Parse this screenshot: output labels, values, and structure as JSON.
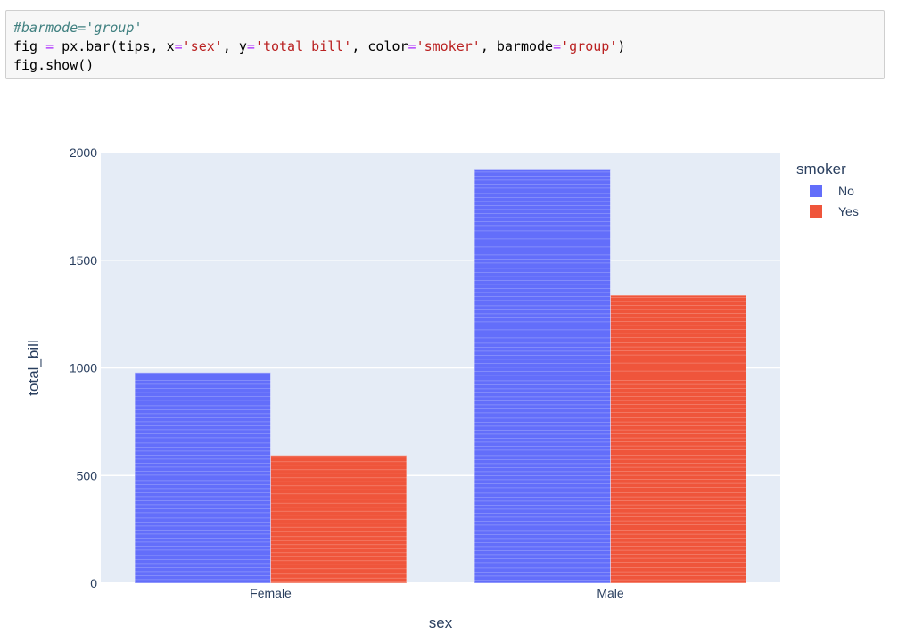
{
  "code_cell": {
    "lines": [
      [
        {
          "t": "#barmode='group'",
          "c": "comment"
        }
      ],
      [
        {
          "t": "fig ",
          "c": ""
        },
        {
          "t": "=",
          "c": "op"
        },
        {
          "t": " px.bar(tips, x",
          "c": ""
        },
        {
          "t": "=",
          "c": "op"
        },
        {
          "t": "'sex'",
          "c": "str"
        },
        {
          "t": ", y",
          "c": ""
        },
        {
          "t": "=",
          "c": "op"
        },
        {
          "t": "'total_bill'",
          "c": "str"
        },
        {
          "t": ", color",
          "c": ""
        },
        {
          "t": "=",
          "c": "op"
        },
        {
          "t": "'smoker'",
          "c": "str"
        },
        {
          "t": ", barmode",
          "c": ""
        },
        {
          "t": "=",
          "c": "op"
        },
        {
          "t": "'group'",
          "c": "str"
        },
        {
          "t": ")",
          "c": ""
        }
      ],
      [
        {
          "t": "fig.show()",
          "c": ""
        }
      ]
    ]
  },
  "chart_data": {
    "type": "bar",
    "barmode": "group",
    "categories": [
      "Female",
      "Male"
    ],
    "series": [
      {
        "name": "No",
        "color": "#636efa",
        "values": [
          977.68,
          1919.75
        ]
      },
      {
        "name": "Yes",
        "color": "#ef553b",
        "values": [
          593.27,
          1337.07
        ]
      }
    ],
    "xlabel": "sex",
    "ylabel": "total_bill",
    "ylim": [
      0,
      2000
    ],
    "yticks": [
      0,
      500,
      1000,
      1500,
      2000
    ],
    "grid": true,
    "legend": {
      "title": "smoker",
      "placement": "top-right"
    },
    "plot_bg": "#e5ecf6",
    "font_color": "#2a3f5f"
  }
}
